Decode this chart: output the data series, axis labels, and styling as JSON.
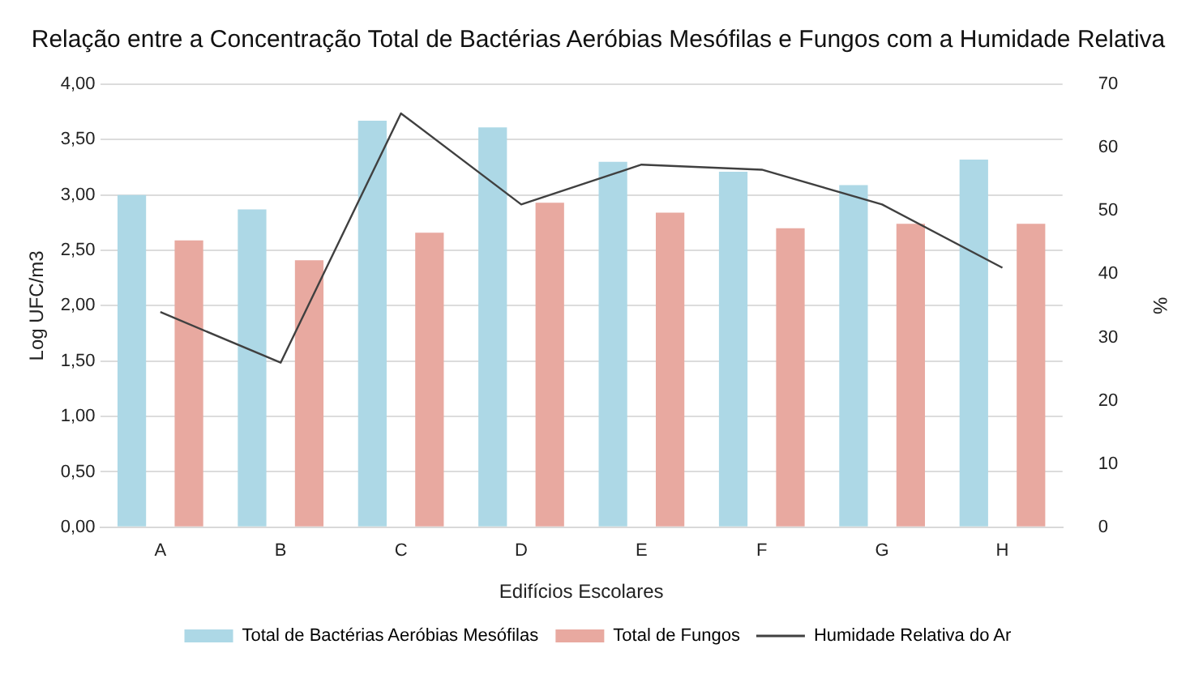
{
  "chart_data": {
    "type": "bar",
    "title": "Relação entre a Concentração Total de Bactérias Aeróbias Mesófilas e Fungos com a Humidade Relativa",
    "xlabel": "Edifícios Escolares",
    "ylabel": "Log UFC/m3",
    "y2label": "%",
    "categories": [
      "A",
      "B",
      "C",
      "D",
      "E",
      "F",
      "G",
      "H"
    ],
    "series": [
      {
        "name": "Total de Bactérias Aeróbias Mesófilas",
        "color": "#add8e6",
        "values": [
          3.0,
          2.87,
          3.67,
          3.61,
          3.3,
          3.21,
          3.09,
          3.32
        ]
      },
      {
        "name": "Total de Fungos",
        "color": "#e8a9a0",
        "values": [
          2.59,
          2.41,
          2.66,
          2.93,
          2.84,
          2.7,
          2.74,
          2.74
        ]
      },
      {
        "name": "Humidade Relativa do Ar",
        "type": "line",
        "axis": "y2",
        "color": "#404040",
        "values": [
          34,
          26,
          65.4,
          51,
          57.3,
          56.5,
          51,
          41
        ]
      }
    ],
    "ylim": [
      0,
      4
    ],
    "yticks": [
      {
        "value": 0,
        "label": "0,00"
      },
      {
        "value": 0.5,
        "label": "0,50"
      },
      {
        "value": 1,
        "label": "1,00"
      },
      {
        "value": 1.5,
        "label": "1,50"
      },
      {
        "value": 2,
        "label": "2,00"
      },
      {
        "value": 2.5,
        "label": "2,50"
      },
      {
        "value": 3,
        "label": "3,00"
      },
      {
        "value": 3.5,
        "label": "3,50"
      },
      {
        "value": 4,
        "label": "4,00"
      }
    ],
    "y2lim": [
      0,
      70
    ],
    "y2ticks": [
      0,
      10,
      20,
      30,
      40,
      50,
      60,
      70
    ],
    "grid": "y",
    "legend": "bottom",
    "marker": "none"
  }
}
